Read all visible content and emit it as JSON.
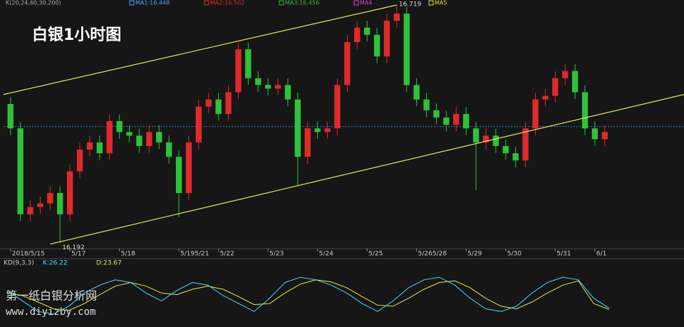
{
  "chart_data": {
    "type": "candlestick",
    "title": "白银1小时图",
    "indicator_label": "K(20,24,60,30,200)",
    "legend": [
      {
        "label": "MA1:16.448",
        "color": "#4aa8ff"
      },
      {
        "label": "MA2:16.502",
        "color": "#e03030"
      },
      {
        "label": "MA3:16.456",
        "color": "#30c030"
      },
      {
        "label": "MA4",
        "color": "#e040e0"
      },
      {
        "label": "MA5",
        "color": "#e0e040"
      }
    ],
    "up_color": "#e02a2a",
    "down_color": "#2ec23a",
    "ylim": [
      16.18,
      16.73
    ],
    "xlim": [
      -0.7,
      68
    ],
    "xticks": [
      {
        "value": 0,
        "label": "2018/5/15"
      },
      {
        "value": 6,
        "label": "5/17"
      },
      {
        "value": 11,
        "label": "5/18"
      },
      {
        "value": 17,
        "label": "5/195/21"
      },
      {
        "value": 21,
        "label": "5/22"
      },
      {
        "value": 26,
        "label": "5/23"
      },
      {
        "value": 31,
        "label": "5/24"
      },
      {
        "value": 36,
        "label": "5/25"
      },
      {
        "value": 41,
        "label": "5/265/28"
      },
      {
        "value": 46,
        "label": "5/29"
      },
      {
        "value": 50,
        "label": "5/30"
      },
      {
        "value": 55,
        "label": "5/31"
      },
      {
        "value": 59,
        "label": "6/1"
      }
    ],
    "open": [
      16.5,
      16.446,
      16.256,
      16.272,
      16.28,
      16.303,
      16.256,
      16.351,
      16.399,
      16.415,
      16.391,
      16.462,
      16.438,
      16.43,
      16.407,
      16.438,
      16.415,
      16.383,
      16.303,
      16.415,
      16.494,
      16.51,
      16.478,
      16.526,
      16.621,
      16.557,
      16.542,
      16.534,
      16.542,
      16.51,
      16.383,
      16.446,
      16.438,
      16.446,
      16.542,
      16.637,
      16.669,
      16.653,
      16.605,
      16.684,
      16.7,
      16.542,
      16.51,
      16.486,
      16.47,
      16.454,
      16.478,
      16.446,
      16.415,
      16.43,
      16.407,
      16.391,
      16.375,
      16.446,
      16.51,
      16.518,
      16.557,
      16.573,
      16.526,
      16.446,
      16.422
    ],
    "high": [
      16.515,
      16.461,
      16.287,
      16.295,
      16.318,
      16.318,
      16.366,
      16.414,
      16.43,
      16.43,
      16.477,
      16.477,
      16.453,
      16.445,
      16.453,
      16.453,
      16.43,
      16.398,
      16.43,
      16.509,
      16.525,
      16.525,
      16.541,
      16.636,
      16.636,
      16.572,
      16.557,
      16.557,
      16.557,
      16.525,
      16.461,
      16.461,
      16.461,
      16.557,
      16.652,
      16.684,
      16.684,
      16.668,
      16.699,
      16.719,
      16.715,
      16.557,
      16.525,
      16.501,
      16.485,
      16.493,
      16.493,
      16.461,
      16.445,
      16.445,
      16.422,
      16.406,
      16.461,
      16.525,
      16.533,
      16.572,
      16.588,
      16.588,
      16.541,
      16.461,
      16.453
    ],
    "low": [
      16.431,
      16.241,
      16.241,
      16.257,
      16.265,
      16.192,
      16.241,
      16.336,
      16.384,
      16.376,
      16.376,
      16.423,
      16.415,
      16.392,
      16.392,
      16.4,
      16.368,
      16.25,
      16.288,
      16.4,
      16.479,
      16.463,
      16.463,
      16.511,
      16.542,
      16.527,
      16.519,
      16.519,
      16.495,
      16.32,
      16.368,
      16.423,
      16.423,
      16.431,
      16.527,
      16.622,
      16.638,
      16.59,
      16.59,
      16.669,
      16.527,
      16.495,
      16.471,
      16.455,
      16.439,
      16.439,
      16.431,
      16.31,
      16.4,
      16.392,
      16.376,
      16.36,
      16.36,
      16.431,
      16.495,
      16.503,
      16.542,
      16.511,
      16.431,
      16.407,
      16.407
    ],
    "close": [
      16.446,
      16.256,
      16.272,
      16.28,
      16.303,
      16.256,
      16.351,
      16.399,
      16.415,
      16.391,
      16.462,
      16.438,
      16.43,
      16.407,
      16.438,
      16.415,
      16.383,
      16.303,
      16.415,
      16.494,
      16.51,
      16.478,
      16.526,
      16.621,
      16.557,
      16.542,
      16.534,
      16.542,
      16.51,
      16.383,
      16.446,
      16.438,
      16.446,
      16.542,
      16.637,
      16.669,
      16.653,
      16.605,
      16.684,
      16.7,
      16.542,
      16.51,
      16.486,
      16.47,
      16.454,
      16.478,
      16.446,
      16.415,
      16.43,
      16.407,
      16.391,
      16.375,
      16.446,
      16.51,
      16.518,
      16.557,
      16.573,
      16.526,
      16.446,
      16.422,
      16.438
    ],
    "hline": 16.45,
    "trendlines": [
      {
        "x": [
          -0.7,
          39
        ],
        "y": [
          16.521,
          16.719
        ],
        "color": "#e6e65a"
      },
      {
        "x": [
          4,
          68
        ],
        "y": [
          16.19,
          16.521
        ],
        "color": "#e6e65a"
      }
    ],
    "annotations": [
      {
        "text": "16.719",
        "x": 39,
        "y": 16.719
      },
      {
        "text": "16.192",
        "x": 5,
        "y": 16.192
      }
    ],
    "kd": {
      "label": "KD(9,3,3)",
      "ylim": [
        0,
        100
      ],
      "k_label": "K:26.22",
      "k_color": "#4ad8ff",
      "d_label": "D:23.67",
      "d_color": "#e6e65a",
      "k": [
        60,
        40,
        20,
        15,
        30,
        55,
        70,
        80,
        75,
        55,
        40,
        60,
        75,
        70,
        50,
        35,
        20,
        45,
        75,
        85,
        80,
        70,
        55,
        35,
        20,
        40,
        65,
        80,
        85,
        70,
        45,
        25,
        20,
        30,
        55,
        75,
        85,
        80,
        45,
        26.22
      ],
      "d": [
        55,
        50,
        38,
        25,
        22,
        35,
        52,
        68,
        75,
        68,
        55,
        52,
        62,
        68,
        62,
        48,
        33,
        35,
        55,
        72,
        80,
        76,
        65,
        48,
        32,
        30,
        45,
        62,
        75,
        78,
        65,
        45,
        30,
        25,
        38,
        55,
        70,
        78,
        35,
        23.67
      ]
    },
    "watermark": [
      "第一纸白银分析网",
      "www.diyizby.com"
    ]
  }
}
